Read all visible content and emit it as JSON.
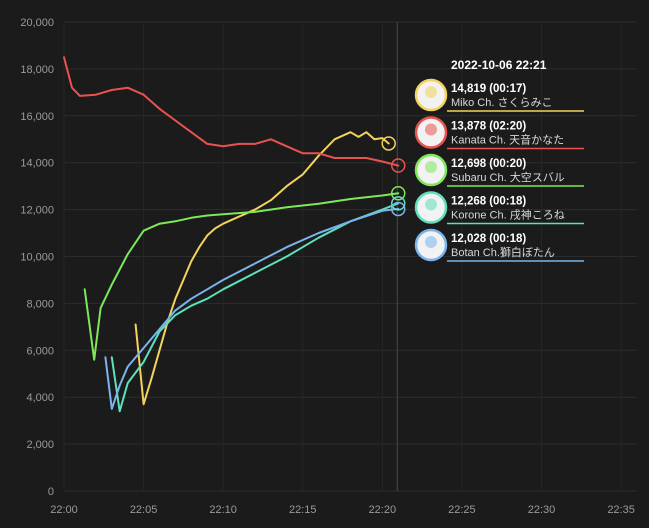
{
  "chart_data": {
    "type": "line",
    "title": "",
    "xlabel": "",
    "ylabel": "",
    "xlim": [
      "22:00",
      "22:36"
    ],
    "ylim": [
      0,
      20000
    ],
    "x_ticks": [
      "22:00",
      "22:05",
      "22:10",
      "22:15",
      "22:20",
      "22:25",
      "22:30",
      "22:35"
    ],
    "y_ticks": [
      "0",
      "2,000",
      "4,000",
      "6,000",
      "8,000",
      "10,000",
      "12,000",
      "14,000",
      "16,000",
      "18,000",
      "20,000"
    ],
    "grid": true,
    "cursor": {
      "x": "22:21",
      "label": "2022-10-06 22:21"
    },
    "series": [
      {
        "name": "Miko Ch. さくらみこ",
        "color": "#f3d35a",
        "tooltip_value": "14,819",
        "tooltip_time": "(00:17)",
        "points": [
          [
            "22:04.5",
            7100
          ],
          [
            "22:05",
            3700
          ],
          [
            "22:05.5",
            4800
          ],
          [
            "22:06",
            6000
          ],
          [
            "22:06.5",
            7200
          ],
          [
            "22:07",
            8200
          ],
          [
            "22:07.5",
            9000
          ],
          [
            "22:08",
            9800
          ],
          [
            "22:08.5",
            10400
          ],
          [
            "22:09",
            10900
          ],
          [
            "22:09.5",
            11200
          ],
          [
            "22:10",
            11400
          ],
          [
            "22:11",
            11700
          ],
          [
            "22:12",
            12000
          ],
          [
            "22:13",
            12400
          ],
          [
            "22:14",
            13000
          ],
          [
            "22:15",
            13500
          ],
          [
            "22:16",
            14300
          ],
          [
            "22:17",
            15000
          ],
          [
            "22:18",
            15300
          ],
          [
            "22:18.5",
            15100
          ],
          [
            "22:19",
            15300
          ],
          [
            "22:19.5",
            15000
          ],
          [
            "22:20",
            15050
          ],
          [
            "22:20.4",
            14819
          ]
        ]
      },
      {
        "name": "Kanata Ch. 天音かなた",
        "color": "#e8534f",
        "tooltip_value": "13,878",
        "tooltip_time": "(02:20)",
        "points": [
          [
            "22:00",
            18500
          ],
          [
            "22:00.5",
            17200
          ],
          [
            "22:01",
            16850
          ],
          [
            "22:02",
            16900
          ],
          [
            "22:03",
            17100
          ],
          [
            "22:04",
            17200
          ],
          [
            "22:05",
            16900
          ],
          [
            "22:06",
            16300
          ],
          [
            "22:07",
            15800
          ],
          [
            "22:08",
            15300
          ],
          [
            "22:09",
            14800
          ],
          [
            "22:10",
            14700
          ],
          [
            "22:11",
            14800
          ],
          [
            "22:12",
            14800
          ],
          [
            "22:13",
            15000
          ],
          [
            "22:14",
            14700
          ],
          [
            "22:15",
            14400
          ],
          [
            "22:16",
            14400
          ],
          [
            "22:17",
            14200
          ],
          [
            "22:18",
            14200
          ],
          [
            "22:19",
            14200
          ],
          [
            "22:20",
            14050
          ],
          [
            "22:21",
            13878
          ]
        ]
      },
      {
        "name": "Subaru Ch. 大空スバル",
        "color": "#7ee75a",
        "tooltip_value": "12,698",
        "tooltip_time": "(00:20)",
        "points": [
          [
            "22:01.3",
            8600
          ],
          [
            "22:01.9",
            5600
          ],
          [
            "22:02.3",
            7800
          ],
          [
            "22:03",
            8800
          ],
          [
            "22:04",
            10100
          ],
          [
            "22:05",
            11100
          ],
          [
            "22:06",
            11400
          ],
          [
            "22:07",
            11500
          ],
          [
            "22:08",
            11650
          ],
          [
            "22:09",
            11750
          ],
          [
            "22:10",
            11800
          ],
          [
            "22:12",
            11900
          ],
          [
            "22:14",
            12100
          ],
          [
            "22:16",
            12250
          ],
          [
            "22:18",
            12450
          ],
          [
            "22:20",
            12600
          ],
          [
            "22:21",
            12698
          ]
        ]
      },
      {
        "name": "Korone Ch. 戌神ころね",
        "color": "#5ee0bb",
        "tooltip_value": "12,268",
        "tooltip_time": "(00:18)",
        "points": [
          [
            "22:03",
            5700
          ],
          [
            "22:03.5",
            3400
          ],
          [
            "22:04",
            4600
          ],
          [
            "22:05",
            5500
          ],
          [
            "22:06",
            6800
          ],
          [
            "22:07",
            7500
          ],
          [
            "22:08",
            7900
          ],
          [
            "22:09",
            8200
          ],
          [
            "22:10",
            8600
          ],
          [
            "22:12",
            9300
          ],
          [
            "22:14",
            10000
          ],
          [
            "22:16",
            10800
          ],
          [
            "22:18",
            11500
          ],
          [
            "22:20",
            12000
          ],
          [
            "22:21",
            12268
          ]
        ]
      },
      {
        "name": "Botan Ch.獅白ぼたん",
        "color": "#79b4ec",
        "tooltip_value": "12,028",
        "tooltip_time": "(00:18)",
        "points": [
          [
            "22:02.6",
            5700
          ],
          [
            "22:03",
            3500
          ],
          [
            "22:03.5",
            4500
          ],
          [
            "22:04",
            5300
          ],
          [
            "22:05",
            6100
          ],
          [
            "22:06",
            6900
          ],
          [
            "22:07",
            7700
          ],
          [
            "22:08",
            8200
          ],
          [
            "22:09",
            8600
          ],
          [
            "22:10",
            9000
          ],
          [
            "22:12",
            9700
          ],
          [
            "22:14",
            10400
          ],
          [
            "22:16",
            11000
          ],
          [
            "22:18",
            11500
          ],
          [
            "22:20",
            11950
          ],
          [
            "22:21",
            12028
          ]
        ]
      }
    ]
  }
}
